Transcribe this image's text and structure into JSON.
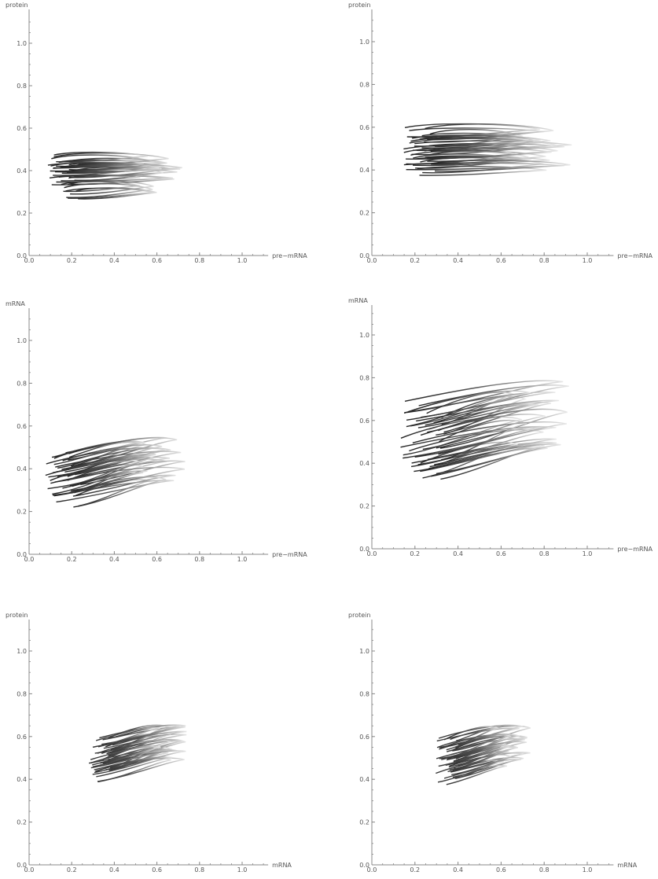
{
  "chart_data": [
    {
      "type": "line",
      "xlabel": "pre−mRNA",
      "ylabel": "protein",
      "xlim": [
        0,
        1.1
      ],
      "ylim": [
        0,
        1.1
      ],
      "xticks": [
        "0.0",
        "0.2",
        "0.4",
        "0.6",
        "0.8",
        "1.0"
      ],
      "yticks": [
        "0.0",
        "0.2",
        "0.4",
        "0.6",
        "0.8",
        "1.0"
      ],
      "series": [
        {
          "x_range": [
            0.08,
            0.74
          ],
          "y_range": [
            0.25,
            0.5
          ],
          "color_start": "#222222",
          "color_end": "#e0e0e0"
        }
      ]
    },
    {
      "type": "line",
      "xlabel": "pre−mRNA",
      "ylabel": "protein",
      "xlim": [
        0,
        1.1
      ],
      "ylim": [
        0,
        1.1
      ],
      "xticks": [
        "0.0",
        "0.2",
        "0.4",
        "0.6",
        "0.8",
        "1.0"
      ],
      "yticks": [
        "0.0",
        "0.2",
        "0.4",
        "0.6",
        "0.8",
        "1.0"
      ],
      "series": [
        {
          "x_range": [
            0.14,
            0.93
          ],
          "y_range": [
            0.35,
            0.63
          ],
          "color_start": "#222222",
          "color_end": "#e8e8e8"
        }
      ]
    },
    {
      "type": "line",
      "xlabel": "pre−mRNA",
      "ylabel": "mRNA",
      "xlim": [
        0,
        1.1
      ],
      "ylim": [
        0,
        1.1
      ],
      "xticks": [
        "0.0",
        "0.2",
        "0.4",
        "0.6",
        "0.8",
        "1.0"
      ],
      "yticks": [
        "0.0",
        "0.2",
        "0.4",
        "0.6",
        "0.8",
        "1.0"
      ],
      "series": [
        {
          "x_range": [
            0.08,
            0.74
          ],
          "y_range": [
            0.2,
            0.54
          ],
          "color_start": "#222222",
          "color_end": "#e0e0e0"
        }
      ]
    },
    {
      "type": "line",
      "xlabel": "pre−mRNA",
      "ylabel": "mRNA",
      "xlim": [
        0,
        1.1
      ],
      "ylim": [
        0,
        1.1
      ],
      "xticks": [
        "0.0",
        "0.2",
        "0.4",
        "0.6",
        "0.8",
        "1.0"
      ],
      "yticks": [
        "0.0",
        "0.2",
        "0.4",
        "0.6",
        "0.8",
        "1.0"
      ],
      "series": [
        {
          "x_range": [
            0.14,
            0.93
          ],
          "y_range": [
            0.29,
            0.74
          ],
          "color_start": "#222222",
          "color_end": "#e8e8e8"
        }
      ]
    },
    {
      "type": "line",
      "xlabel": "mRNA",
      "ylabel": "protein",
      "xlim": [
        0,
        1.1
      ],
      "ylim": [
        0,
        1.1
      ],
      "xticks": [
        "0.0",
        "0.2",
        "0.4",
        "0.6",
        "0.8",
        "1.0"
      ],
      "yticks": [
        "0.0",
        "0.2",
        "0.4",
        "0.6",
        "0.8",
        "1.0"
      ],
      "series": [
        {
          "x_range": [
            0.29,
            0.74
          ],
          "y_range": [
            0.35,
            0.63
          ],
          "color_start": "#333333",
          "color_end": "#e4e4e4"
        }
      ]
    },
    {
      "type": "line",
      "xlabel": "mRNA",
      "ylabel": "protein",
      "xlim": [
        0,
        1.1
      ],
      "ylim": [
        0,
        1.1
      ],
      "xticks": [
        "0.0",
        "0.2",
        "0.4",
        "0.6",
        "0.8",
        "1.0"
      ],
      "yticks": [
        "0.0",
        "0.2",
        "0.4",
        "0.6",
        "0.8",
        "1.0"
      ],
      "series": [
        {
          "x_range": [
            0.29,
            0.74
          ],
          "y_range": [
            0.35,
            0.63
          ],
          "color_start": "#333333",
          "color_end": "#e4e4e4"
        }
      ]
    }
  ]
}
